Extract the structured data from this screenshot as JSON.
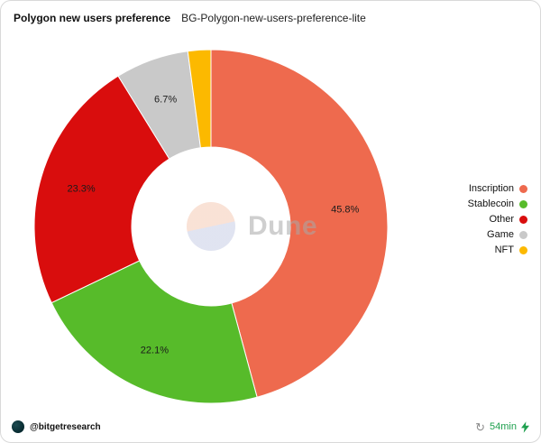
{
  "header": {
    "title": "Polygon new users preference",
    "subtitle": "BG-Polygon-new-users-preference-lite"
  },
  "chart_data": {
    "type": "pie",
    "title": "Polygon new users preference",
    "donut": true,
    "start_angle_deg": 0,
    "direction": "clockwise",
    "legend_position": "right",
    "slices": [
      {
        "label": "Inscription",
        "value": 45.8,
        "display": "45.8%",
        "color": "#ee6a4e"
      },
      {
        "label": "Stablecoin",
        "value": 22.1,
        "display": "22.1%",
        "color": "#57bb2a"
      },
      {
        "label": "Other",
        "value": 23.3,
        "display": "23.3%",
        "color": "#d90d0d"
      },
      {
        "label": "Game",
        "value": 6.7,
        "display": "6.7%",
        "color": "#c9c9c9"
      },
      {
        "label": "NFT",
        "value": 2.1,
        "display": "",
        "color": "#fcb900"
      }
    ]
  },
  "watermark": {
    "text": "Dune"
  },
  "icons": {
    "refresh": "↻"
  },
  "colors": {
    "freshness_green": "#1fa04f",
    "card_border": "#d9d9d9"
  },
  "footer": {
    "attribution": "@bitgetresearch",
    "freshness": "54min"
  }
}
